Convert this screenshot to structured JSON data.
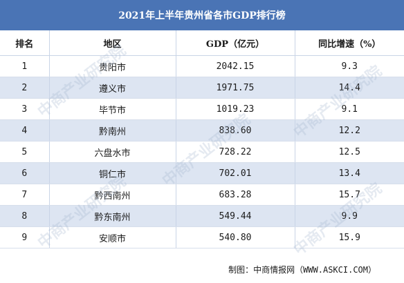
{
  "title": "2021年上半年贵州省各市GDP排行榜",
  "headers": {
    "rank": "排名",
    "region": "地区",
    "gdp": "GDP（亿元）",
    "growth": "同比增速（%）"
  },
  "rows": [
    {
      "rank": "1",
      "region": "贵阳市",
      "gdp": "2042.15",
      "growth": "9.3"
    },
    {
      "rank": "2",
      "region": "遵义市",
      "gdp": "1971.75",
      "growth": "14.4"
    },
    {
      "rank": "3",
      "region": "毕节市",
      "gdp": "1019.23",
      "growth": "9.1"
    },
    {
      "rank": "4",
      "region": "黔南州",
      "gdp": "838.60",
      "growth": "12.2"
    },
    {
      "rank": "5",
      "region": "六盘水市",
      "gdp": "728.22",
      "growth": "12.5"
    },
    {
      "rank": "6",
      "region": "铜仁市",
      "gdp": "702.01",
      "growth": "13.4"
    },
    {
      "rank": "7",
      "region": "黔西南州",
      "gdp": "683.28",
      "growth": "15.7"
    },
    {
      "rank": "8",
      "region": "黔东南州",
      "gdp": "549.44",
      "growth": "9.9"
    },
    {
      "rank": "9",
      "region": "安顺市",
      "gdp": "540.80",
      "growth": "15.9"
    }
  ],
  "source": "制图：中商情报网（WWW.ASKCI.COM）",
  "watermark_text": "中商产业研究院",
  "colors": {
    "header_bar": "#4a74b5",
    "stripe": "#dde5f2",
    "border": "#c9d4e6"
  }
}
